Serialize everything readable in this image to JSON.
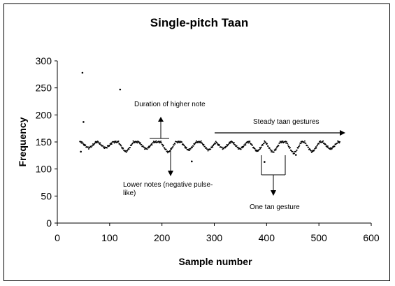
{
  "chart_data": {
    "type": "scatter",
    "title": "Single-pitch Taan",
    "xlabel": "Sample number",
    "ylabel": "Frequency",
    "xlim": [
      0,
      600
    ],
    "ylim": [
      0,
      300
    ],
    "xticks": [
      0,
      100,
      200,
      300,
      400,
      500,
      600
    ],
    "yticks": [
      0,
      50,
      100,
      150,
      200,
      250,
      300
    ],
    "grid": false,
    "legend": "none",
    "marker_color": "#000000",
    "series": [
      {
        "points_main_curve": {
          "x_start": 43,
          "x_end": 540,
          "dips": [
            {
              "x": 60,
              "min": 139
            },
            {
              "x": 92,
              "min": 139
            },
            {
              "x": 131,
              "min": 132
            },
            {
              "x": 170,
              "min": 137
            },
            {
              "x": 212,
              "min": 131
            },
            {
              "x": 251,
              "min": 135
            },
            {
              "x": 289,
              "min": 135
            },
            {
              "x": 317,
              "min": 138
            },
            {
              "x": 349,
              "min": 137
            },
            {
              "x": 382,
              "min": 133
            },
            {
              "x": 412,
              "min": 131
            },
            {
              "x": 452,
              "min": 129
            },
            {
              "x": 487,
              "min": 132
            },
            {
              "x": 522,
              "min": 137
            }
          ],
          "peak": 150
        },
        "outliers": [
          {
            "x": 48,
            "y": 278
          },
          {
            "x": 120,
            "y": 247
          },
          {
            "x": 50,
            "y": 187
          },
          {
            "x": 257,
            "y": 114
          },
          {
            "x": 396,
            "y": 113
          },
          {
            "x": 456,
            "y": 126
          },
          {
            "x": 45,
            "y": 132
          }
        ]
      }
    ],
    "annotations": [
      {
        "id": "higher-note",
        "text": "Duration of higher note"
      },
      {
        "id": "steady",
        "text": "Steady taan gestures"
      },
      {
        "id": "lower-notes",
        "text": "Lower notes (negative pulse-like)"
      },
      {
        "id": "tan-gesture",
        "text": "One tan gesture"
      }
    ]
  }
}
